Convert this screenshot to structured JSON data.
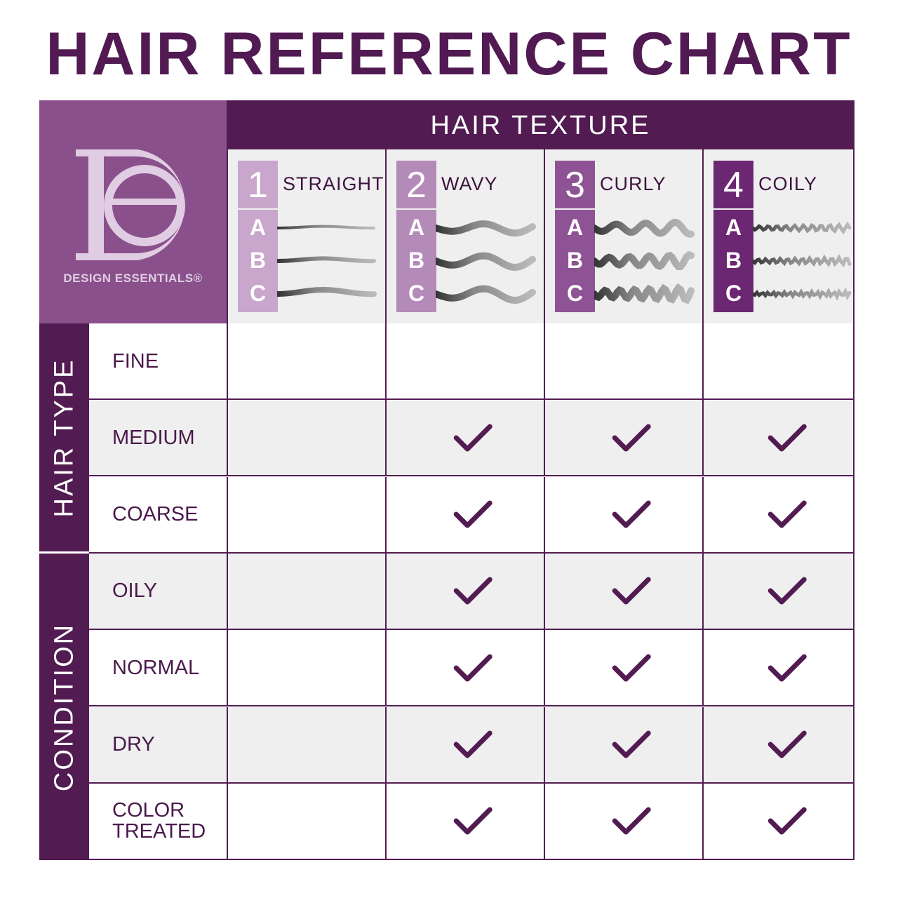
{
  "title": "HAIR REFERENCE CHART",
  "brand": {
    "name": "DESIGN ESSENTIALS®",
    "monogram": "DE"
  },
  "header": "HAIR TEXTURE",
  "colors": {
    "dark": "#521c52",
    "logo_bg": "#8a508b",
    "type1": "#c9a6cc",
    "type2": "#b48ab8",
    "type3": "#8e5395",
    "type4": "#6c2772",
    "alt_row": "#efefef"
  },
  "textures": [
    {
      "num": "1",
      "name": "STRAIGHT",
      "subtypes": [
        "A",
        "B",
        "C"
      ]
    },
    {
      "num": "2",
      "name": "WAVY",
      "subtypes": [
        "A",
        "B",
        "C"
      ]
    },
    {
      "num": "3",
      "name": "CURLY",
      "subtypes": [
        "A",
        "B",
        "C"
      ]
    },
    {
      "num": "4",
      "name": "COILY",
      "subtypes": [
        "A",
        "B",
        "C"
      ]
    }
  ],
  "groups": [
    {
      "label": "HAIR TYPE"
    },
    {
      "label": "CONDITION"
    }
  ],
  "rows": [
    {
      "label": "FINE",
      "checks": [
        false,
        false,
        false,
        false
      ]
    },
    {
      "label": "MEDIUM",
      "checks": [
        false,
        true,
        true,
        true
      ]
    },
    {
      "label": "COARSE",
      "checks": [
        false,
        true,
        true,
        true
      ]
    },
    {
      "label": "OILY",
      "checks": [
        false,
        true,
        true,
        true
      ]
    },
    {
      "label": "NORMAL",
      "checks": [
        false,
        true,
        true,
        true
      ]
    },
    {
      "label": "DRY",
      "checks": [
        false,
        true,
        true,
        true
      ]
    },
    {
      "label": "COLOR\nTREATED",
      "checks": [
        false,
        true,
        true,
        true
      ]
    }
  ]
}
